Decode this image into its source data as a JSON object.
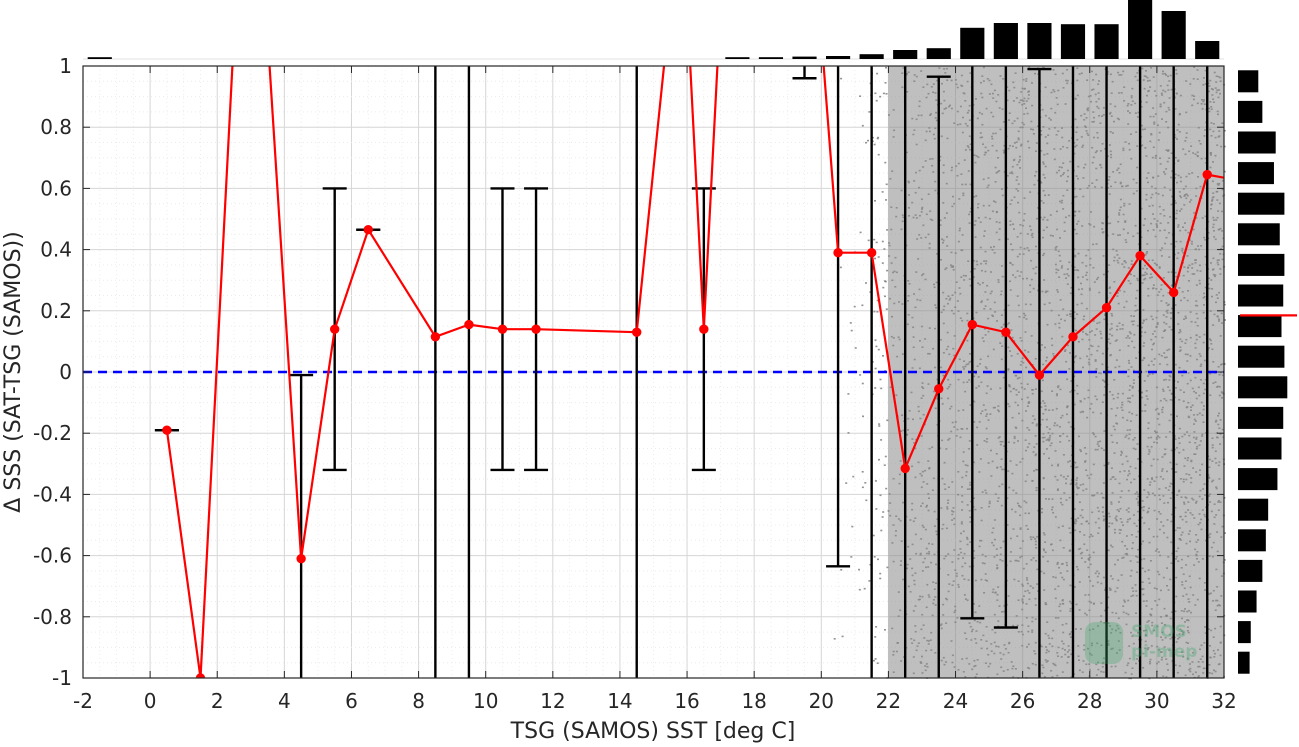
{
  "chart_data": {
    "type": "line",
    "xlabel": "TSG (SAMOS) SST [deg C]",
    "ylabel": "Δ SSS (SAT-TSG (SAMOS))",
    "xlim": [
      -2,
      32
    ],
    "ylim": [
      -1,
      1
    ],
    "xticks": [
      -2,
      0,
      2,
      4,
      6,
      8,
      10,
      12,
      14,
      16,
      18,
      20,
      22,
      24,
      26,
      28,
      30,
      32
    ],
    "yticks": [
      -1,
      -0.8,
      -0.6,
      -0.4,
      -0.2,
      0,
      0.2,
      0.4,
      0.6,
      0.8,
      1
    ],
    "xtick_labels": [
      "-2",
      "0",
      "2",
      "4",
      "6",
      "8",
      "10",
      "12",
      "14",
      "16",
      "18",
      "20",
      "22",
      "24",
      "26",
      "28",
      "30",
      "32"
    ],
    "ytick_labels": [
      "-1",
      "-0.8",
      "-0.6",
      "-0.4",
      "-0.2",
      "0",
      "0.2",
      "0.4",
      "0.6",
      "0.8",
      "1"
    ],
    "grid": true,
    "reference_line": {
      "y": 0,
      "style": "dashed",
      "color": "#0000ff"
    },
    "mean_series": {
      "color": "#ff0000",
      "x": [
        0.5,
        1.5,
        2.5,
        3.5,
        4.5,
        5.5,
        6.5,
        8.5,
        9.5,
        10.5,
        11.5,
        14.5,
        15.5,
        16,
        16.5,
        17,
        20,
        20.5,
        21.5,
        22.5,
        23.5,
        24.5,
        25.5,
        26.5,
        27.5,
        28.5,
        29.5,
        30.5,
        31.5
      ],
      "y": [
        -0.19,
        -1.0,
        1.1,
        1.1,
        -0.61,
        0.14,
        0.465,
        0.115,
        0.155,
        0.14,
        0.14,
        0.13,
        1.2,
        1.2,
        0.14,
        1.2,
        1.1,
        0.39,
        0.39,
        -0.315,
        -0.055,
        0.155,
        0.13,
        -0.01,
        0.115,
        0.21,
        0.38,
        0.26,
        0.645
      ]
    },
    "error_bars": [
      {
        "x": 0.5,
        "low": -0.19,
        "high": -0.19
      },
      {
        "x": 4.5,
        "low": -1.2,
        "high": -0.01
      },
      {
        "x": 5.5,
        "low": -0.32,
        "high": 0.6
      },
      {
        "x": 6.5,
        "low": 0.465,
        "high": 0.465
      },
      {
        "x": 8.5,
        "low": -1.2,
        "high": 1.2
      },
      {
        "x": 9.5,
        "low": -1.2,
        "high": 1.2
      },
      {
        "x": 10.5,
        "low": -0.32,
        "high": 0.6
      },
      {
        "x": 11.5,
        "low": -0.32,
        "high": 0.6
      },
      {
        "x": 14.5,
        "low": -1.2,
        "high": 1.2
      },
      {
        "x": 16.5,
        "low": -0.32,
        "high": 0.6
      },
      {
        "x": 19.5,
        "low": 0.96,
        "high": 1.2
      },
      {
        "x": 20.5,
        "low": -0.635,
        "high": 1.2
      },
      {
        "x": 21.5,
        "low": -1.2,
        "high": 1.2
      },
      {
        "x": 22.5,
        "low": -1.2,
        "high": 1.2
      },
      {
        "x": 23.5,
        "low": -1.2,
        "high": 0.965
      },
      {
        "x": 24.5,
        "low": -0.805,
        "high": 1.2
      },
      {
        "x": 25.5,
        "low": -0.835,
        "high": 1.2
      },
      {
        "x": 26.5,
        "low": -1.2,
        "high": 0.99
      },
      {
        "x": 27.5,
        "low": -1.2,
        "high": 1.2
      },
      {
        "x": 28.5,
        "low": -1.2,
        "high": 1.2
      },
      {
        "x": 29.5,
        "low": -1.2,
        "high": 1.2
      },
      {
        "x": 30.5,
        "low": -1.2,
        "high": 1.2
      },
      {
        "x": 31.5,
        "low": -1.2,
        "high": 1.2
      }
    ],
    "scatter_cloud": {
      "color": "#808080",
      "x_range": [
        20.3,
        32
      ],
      "y_range": [
        -1,
        1
      ]
    },
    "top_histogram": {
      "x": [
        -1.5,
        17.5,
        18.5,
        19.5,
        20.5,
        21.5,
        22.5,
        23.5,
        24.5,
        25.5,
        26.5,
        27.5,
        28.5,
        29.5,
        30.5,
        31.5
      ],
      "values": [
        0.03,
        0.03,
        0.03,
        0.04,
        0.05,
        0.08,
        0.15,
        0.18,
        0.52,
        0.6,
        0.6,
        0.58,
        0.58,
        1.0,
        0.8,
        0.3
      ]
    },
    "right_histogram": {
      "y": [
        0.95,
        0.85,
        0.75,
        0.65,
        0.55,
        0.45,
        0.35,
        0.25,
        0.15,
        0.05,
        -0.05,
        -0.15,
        -0.25,
        -0.35,
        -0.45,
        -0.55,
        -0.65,
        -0.75,
        -0.85,
        -0.95
      ],
      "values": [
        0.35,
        0.42,
        0.65,
        0.62,
        0.8,
        0.72,
        0.8,
        0.78,
        0.75,
        0.8,
        0.85,
        0.78,
        0.75,
        0.68,
        0.52,
        0.48,
        0.42,
        0.32,
        0.22,
        0.2
      ]
    },
    "right_marker_y": 0.185,
    "watermark": {
      "line1": "SMOS",
      "line2": "pi-mep"
    }
  }
}
